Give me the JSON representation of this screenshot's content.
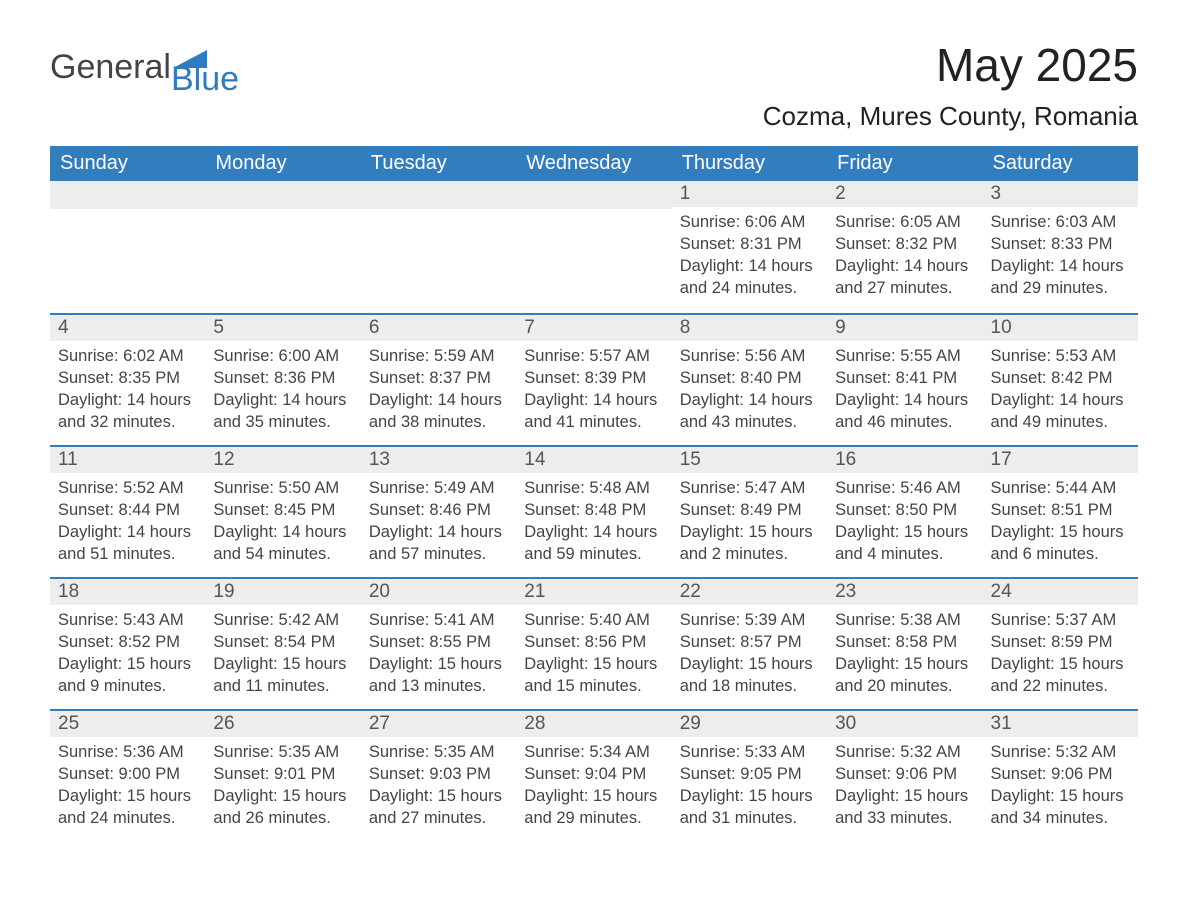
{
  "brand": {
    "word1": "General",
    "word2": "Blue",
    "word1_color": "#444444",
    "word2_color": "#2f7bbf",
    "sail_color": "#2f7bbf"
  },
  "title": "May 2025",
  "location": "Cozma, Mures County, Romania",
  "theme": {
    "header_bg": "#327dbe",
    "header_text": "#ffffff",
    "daybar_bg": "#ededed",
    "daybar_border": "#327dbe",
    "body_text": "#444444",
    "page_bg": "#ffffff"
  },
  "weekday_labels": [
    "Sunday",
    "Monday",
    "Tuesday",
    "Wednesday",
    "Thursday",
    "Friday",
    "Saturday"
  ],
  "labels": {
    "sunrise_prefix": "Sunrise: ",
    "sunset_prefix": "Sunset: ",
    "daylight_prefix": "Daylight: "
  },
  "weeks": [
    [
      null,
      null,
      null,
      null,
      {
        "n": "1",
        "sunrise": "6:06 AM",
        "sunset": "8:31 PM",
        "daylight": "14 hours and 24 minutes."
      },
      {
        "n": "2",
        "sunrise": "6:05 AM",
        "sunset": "8:32 PM",
        "daylight": "14 hours and 27 minutes."
      },
      {
        "n": "3",
        "sunrise": "6:03 AM",
        "sunset": "8:33 PM",
        "daylight": "14 hours and 29 minutes."
      }
    ],
    [
      {
        "n": "4",
        "sunrise": "6:02 AM",
        "sunset": "8:35 PM",
        "daylight": "14 hours and 32 minutes."
      },
      {
        "n": "5",
        "sunrise": "6:00 AM",
        "sunset": "8:36 PM",
        "daylight": "14 hours and 35 minutes."
      },
      {
        "n": "6",
        "sunrise": "5:59 AM",
        "sunset": "8:37 PM",
        "daylight": "14 hours and 38 minutes."
      },
      {
        "n": "7",
        "sunrise": "5:57 AM",
        "sunset": "8:39 PM",
        "daylight": "14 hours and 41 minutes."
      },
      {
        "n": "8",
        "sunrise": "5:56 AM",
        "sunset": "8:40 PM",
        "daylight": "14 hours and 43 minutes."
      },
      {
        "n": "9",
        "sunrise": "5:55 AM",
        "sunset": "8:41 PM",
        "daylight": "14 hours and 46 minutes."
      },
      {
        "n": "10",
        "sunrise": "5:53 AM",
        "sunset": "8:42 PM",
        "daylight": "14 hours and 49 minutes."
      }
    ],
    [
      {
        "n": "11",
        "sunrise": "5:52 AM",
        "sunset": "8:44 PM",
        "daylight": "14 hours and 51 minutes."
      },
      {
        "n": "12",
        "sunrise": "5:50 AM",
        "sunset": "8:45 PM",
        "daylight": "14 hours and 54 minutes."
      },
      {
        "n": "13",
        "sunrise": "5:49 AM",
        "sunset": "8:46 PM",
        "daylight": "14 hours and 57 minutes."
      },
      {
        "n": "14",
        "sunrise": "5:48 AM",
        "sunset": "8:48 PM",
        "daylight": "14 hours and 59 minutes."
      },
      {
        "n": "15",
        "sunrise": "5:47 AM",
        "sunset": "8:49 PM",
        "daylight": "15 hours and 2 minutes."
      },
      {
        "n": "16",
        "sunrise": "5:46 AM",
        "sunset": "8:50 PM",
        "daylight": "15 hours and 4 minutes."
      },
      {
        "n": "17",
        "sunrise": "5:44 AM",
        "sunset": "8:51 PM",
        "daylight": "15 hours and 6 minutes."
      }
    ],
    [
      {
        "n": "18",
        "sunrise": "5:43 AM",
        "sunset": "8:52 PM",
        "daylight": "15 hours and 9 minutes."
      },
      {
        "n": "19",
        "sunrise": "5:42 AM",
        "sunset": "8:54 PM",
        "daylight": "15 hours and 11 minutes."
      },
      {
        "n": "20",
        "sunrise": "5:41 AM",
        "sunset": "8:55 PM",
        "daylight": "15 hours and 13 minutes."
      },
      {
        "n": "21",
        "sunrise": "5:40 AM",
        "sunset": "8:56 PM",
        "daylight": "15 hours and 15 minutes."
      },
      {
        "n": "22",
        "sunrise": "5:39 AM",
        "sunset": "8:57 PM",
        "daylight": "15 hours and 18 minutes."
      },
      {
        "n": "23",
        "sunrise": "5:38 AM",
        "sunset": "8:58 PM",
        "daylight": "15 hours and 20 minutes."
      },
      {
        "n": "24",
        "sunrise": "5:37 AM",
        "sunset": "8:59 PM",
        "daylight": "15 hours and 22 minutes."
      }
    ],
    [
      {
        "n": "25",
        "sunrise": "5:36 AM",
        "sunset": "9:00 PM",
        "daylight": "15 hours and 24 minutes."
      },
      {
        "n": "26",
        "sunrise": "5:35 AM",
        "sunset": "9:01 PM",
        "daylight": "15 hours and 26 minutes."
      },
      {
        "n": "27",
        "sunrise": "5:35 AM",
        "sunset": "9:03 PM",
        "daylight": "15 hours and 27 minutes."
      },
      {
        "n": "28",
        "sunrise": "5:34 AM",
        "sunset": "9:04 PM",
        "daylight": "15 hours and 29 minutes."
      },
      {
        "n": "29",
        "sunrise": "5:33 AM",
        "sunset": "9:05 PM",
        "daylight": "15 hours and 31 minutes."
      },
      {
        "n": "30",
        "sunrise": "5:32 AM",
        "sunset": "9:06 PM",
        "daylight": "15 hours and 33 minutes."
      },
      {
        "n": "31",
        "sunrise": "5:32 AM",
        "sunset": "9:06 PM",
        "daylight": "15 hours and 34 minutes."
      }
    ]
  ]
}
